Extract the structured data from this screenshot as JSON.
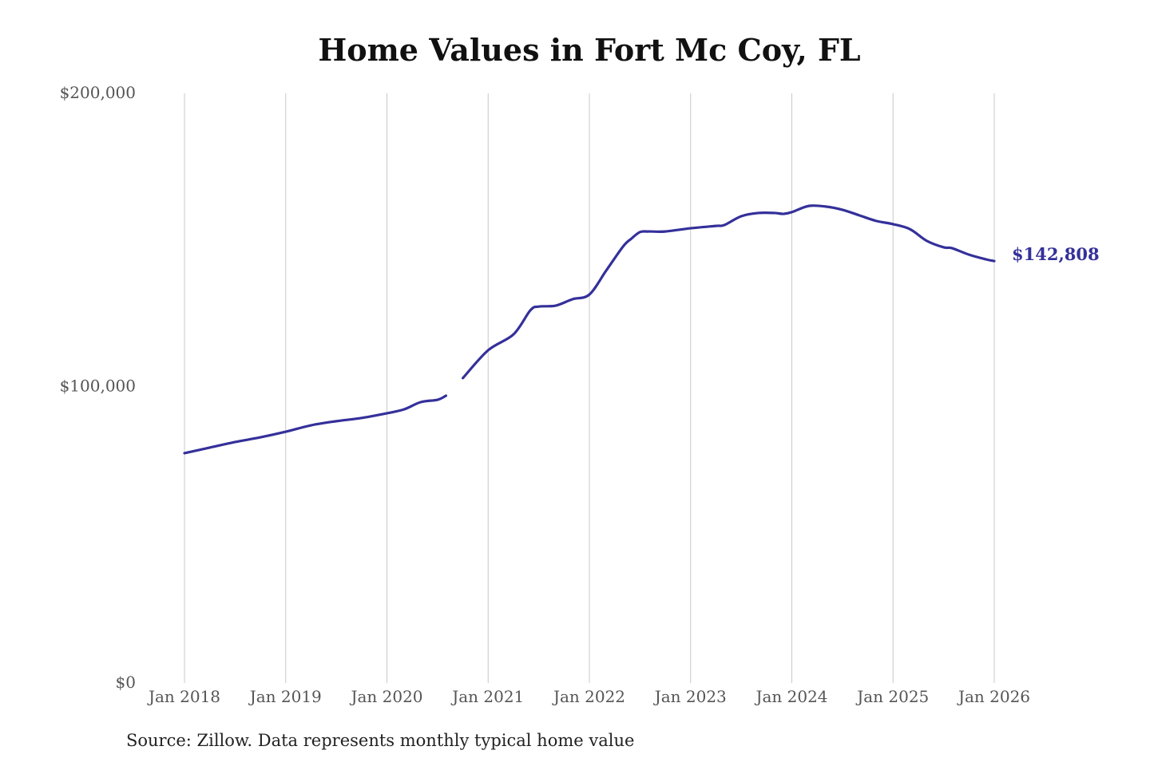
{
  "chart_data": {
    "type": "line",
    "title": "Home Values in Fort Mc Coy, FL",
    "source": "Source: Zillow. Data represents monthly typical home value",
    "xlabel": "",
    "ylabel": "",
    "ylim": [
      0,
      200000
    ],
    "y_ticks": [
      0,
      100000,
      200000
    ],
    "y_tick_labels": [
      "$0",
      "$100,000",
      "$200,000"
    ],
    "x_ticks": [
      "2018-01",
      "2019-01",
      "2020-01",
      "2021-01",
      "2022-01",
      "2023-01",
      "2024-01",
      "2025-01",
      "2026-01"
    ],
    "x_tick_labels": [
      "Jan 2018",
      "Jan 2019",
      "Jan 2020",
      "Jan 2021",
      "Jan 2022",
      "Jan 2023",
      "Jan 2024",
      "Jan 2025",
      "Jan 2026"
    ],
    "grid": "vertical lines at x ticks",
    "line_color": "#34309a",
    "end_label": "$142,808",
    "points": [
      [
        "2018-01",
        77300
      ],
      [
        "2018-04",
        79200
      ],
      [
        "2018-07",
        81100
      ],
      [
        "2018-10",
        82700
      ],
      [
        "2019-01",
        84600
      ],
      [
        "2019-04",
        86800
      ],
      [
        "2019-07",
        88200
      ],
      [
        "2019-10",
        89300
      ],
      [
        "2020-01",
        90900
      ],
      [
        "2020-03",
        92200
      ],
      [
        "2020-05",
        94700
      ],
      [
        "2020-07",
        95500
      ],
      [
        "2020-08",
        96900
      ],
      [
        "2020-09",
        null
      ],
      [
        "2020-10",
        102900
      ],
      [
        "2021-01",
        112400
      ],
      [
        "2021-04",
        117800
      ],
      [
        "2021-06",
        126000
      ],
      [
        "2021-07",
        127300
      ],
      [
        "2021-09",
        127600
      ],
      [
        "2021-11",
        129800
      ],
      [
        "2022-01",
        131400
      ],
      [
        "2022-03",
        139600
      ],
      [
        "2022-05",
        147800
      ],
      [
        "2022-06",
        150500
      ],
      [
        "2022-07",
        152700
      ],
      [
        "2022-08",
        152900
      ],
      [
        "2022-10",
        152900
      ],
      [
        "2023-01",
        154000
      ],
      [
        "2023-04",
        154800
      ],
      [
        "2023-05",
        155100
      ],
      [
        "2023-07",
        158100
      ],
      [
        "2023-09",
        159200
      ],
      [
        "2023-11",
        159200
      ],
      [
        "2023-12",
        158900
      ],
      [
        "2024-01",
        159500
      ],
      [
        "2024-03",
        161600
      ],
      [
        "2024-05",
        161400
      ],
      [
        "2024-07",
        160300
      ],
      [
        "2024-09",
        158400
      ],
      [
        "2024-11",
        156500
      ],
      [
        "2025-01",
        155400
      ],
      [
        "2025-03",
        153700
      ],
      [
        "2025-05",
        149700
      ],
      [
        "2025-07",
        147500
      ],
      [
        "2025-08",
        147200
      ],
      [
        "2025-10",
        145000
      ],
      [
        "2025-12",
        143400
      ],
      [
        "2026-01",
        142808
      ]
    ]
  }
}
